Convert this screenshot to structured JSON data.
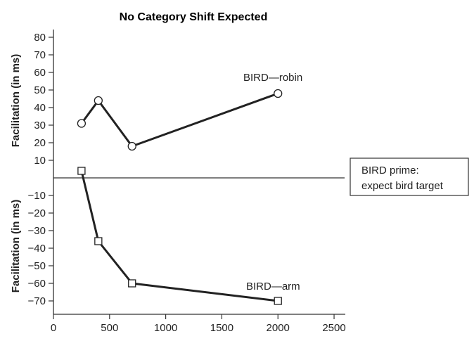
{
  "chart_data": {
    "type": "line",
    "title": "No Category Shift Expected",
    "xlabel": "",
    "ylabel_top": "Facilitation (in ms)",
    "ylabel_bottom": "Facilitation (in ms)",
    "xlim": [
      0,
      2600
    ],
    "ylim": [
      -80,
      85
    ],
    "x_ticks": [
      0,
      500,
      1000,
      1500,
      2000,
      2500
    ],
    "y_ticks_top": [
      10,
      20,
      30,
      40,
      50,
      60,
      70,
      80
    ],
    "y_ticks_bottom": [
      -10,
      -20,
      -30,
      -40,
      -50,
      -60,
      -70
    ],
    "zero_line": 0,
    "grid": false,
    "series": [
      {
        "name": "BIRD—robin",
        "marker": "circle",
        "x": [
          250,
          400,
          700,
          2000
        ],
        "values": [
          31,
          44,
          18,
          48
        ]
      },
      {
        "name": "BIRD—arm",
        "marker": "square",
        "x": [
          250,
          400,
          700,
          2000
        ],
        "values": [
          4,
          -36,
          -60,
          -70
        ]
      }
    ],
    "annotation": {
      "lines": [
        "BIRD prime:",
        "expect bird target"
      ],
      "placement": "right"
    }
  }
}
